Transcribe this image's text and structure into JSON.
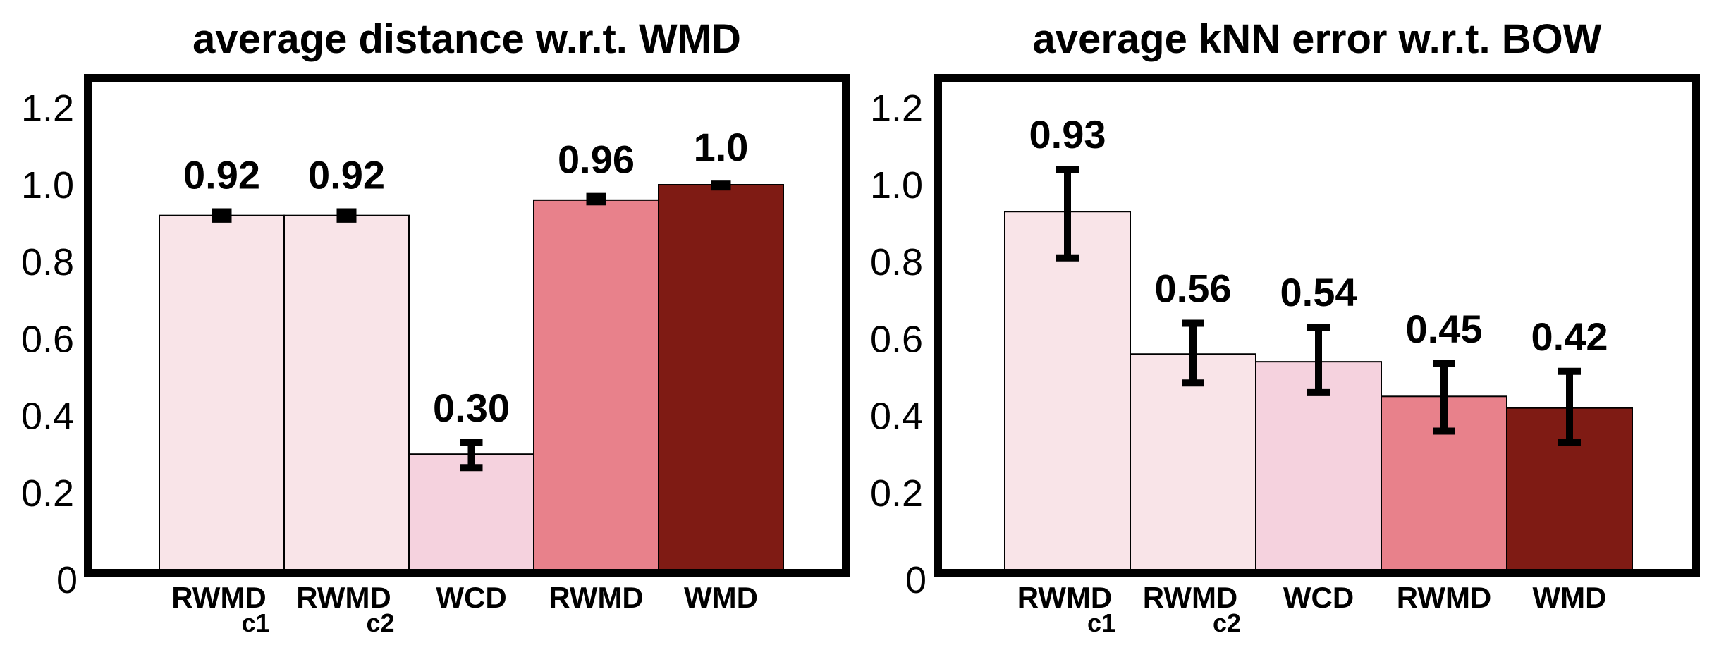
{
  "chart_data": [
    {
      "type": "bar",
      "title": "average distance w.r.t. WMD",
      "categories": [
        {
          "label": "RWMD",
          "sub": "c1"
        },
        {
          "label": "RWMD",
          "sub": "c2"
        },
        {
          "label": "WCD",
          "sub": ""
        },
        {
          "label": "RWMD",
          "sub": ""
        },
        {
          "label": "WMD",
          "sub": ""
        }
      ],
      "values": [
        0.92,
        0.92,
        0.3,
        0.96,
        1.0
      ],
      "value_labels": [
        "0.92",
        "0.92",
        "0.30",
        "0.96",
        "1.0"
      ],
      "error_low": [
        0.905,
        0.905,
        0.265,
        0.95,
        0.993
      ],
      "error_high": [
        0.935,
        0.935,
        0.33,
        0.975,
        1.007
      ],
      "colors": [
        "#f9e4e8",
        "#f9e4e8",
        "#f5d2de",
        "#e8818b",
        "#7f1b14"
      ],
      "yticks": [
        "0",
        "0.2",
        "0.4",
        "0.6",
        "0.8",
        "1.0",
        "1.2"
      ],
      "ylim": [
        0,
        1.28
      ],
      "xlabel": "",
      "ylabel": ""
    },
    {
      "type": "bar",
      "title": "average kNN error w.r.t. BOW",
      "categories": [
        {
          "label": "RWMD",
          "sub": "c1"
        },
        {
          "label": "RWMD",
          "sub": "c2"
        },
        {
          "label": "WCD",
          "sub": ""
        },
        {
          "label": "RWMD",
          "sub": ""
        },
        {
          "label": "WMD",
          "sub": ""
        }
      ],
      "values": [
        0.93,
        0.56,
        0.54,
        0.45,
        0.42
      ],
      "value_labels": [
        "0.93",
        "0.56",
        "0.54",
        "0.45",
        "0.42"
      ],
      "error_low": [
        0.81,
        0.485,
        0.46,
        0.36,
        0.33
      ],
      "error_high": [
        1.04,
        0.64,
        0.63,
        0.535,
        0.515
      ],
      "colors": [
        "#f9e4e8",
        "#f9e4e8",
        "#f5d2de",
        "#e8818b",
        "#7f1b14"
      ],
      "yticks": [
        "0",
        "0.2",
        "0.4",
        "0.6",
        "0.8",
        "1.0",
        "1.2"
      ],
      "ylim": [
        0,
        1.28
      ],
      "xlabel": "",
      "ylabel": ""
    }
  ]
}
